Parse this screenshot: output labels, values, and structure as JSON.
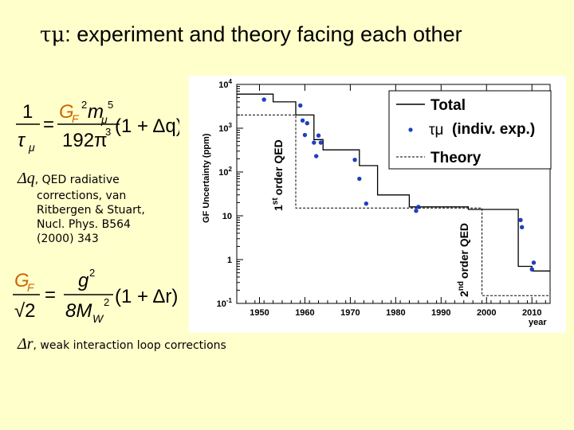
{
  "title": {
    "symbol": "τμ",
    "text": ": experiment and theory facing each other"
  },
  "equations": {
    "eq1": {
      "lhs_num": "1",
      "lhs_den": "τ",
      "lhs_den_sub": "μ",
      "rhs_num": "G",
      "rhs_num_sub": "F",
      "rhs_num_sup": "2",
      "rhs_num_m": "m",
      "rhs_num_m_sub": "μ",
      "rhs_num_m_sup": "5",
      "rhs_den": "192π",
      "rhs_den_sup": "3",
      "factor": "(1 + Δq)"
    },
    "eq2": {
      "lhs_num": "G",
      "lhs_num_sub": "F",
      "lhs_den": "√2",
      "rhs_num": "g",
      "rhs_num_sup": "2",
      "rhs_den": "8M",
      "rhs_den_sub": "W",
      "rhs_den_sup": "2",
      "factor": "(1 + Δr)"
    }
  },
  "notes": {
    "dq_symbol": "Δq",
    "dq_text_1": ", QED radiative",
    "dq_text_2": "corrections, van",
    "dq_text_3": "Ritbergen & Stuart,",
    "dq_text_4": "Nucl. Phys. B564",
    "dq_text_5": "(2000) 343",
    "dr_symbol": "Δr",
    "dr_text": ", weak interaction loop corrections"
  },
  "chart_data": {
    "type": "line",
    "ylabel": "GF Uncertainty (ppm)",
    "xlabel": "year",
    "y_scale": "log",
    "xlim": [
      1945,
      2014
    ],
    "ylim": [
      0.1,
      10000
    ],
    "x_ticks": [
      "1950",
      "1960",
      "1970",
      "1980",
      "1990",
      "2000",
      "2010"
    ],
    "y_ticks": [
      "10-1",
      "1",
      "10",
      "102",
      "103",
      "104"
    ],
    "legend": {
      "placement": "top-right",
      "total": "Total",
      "exp_symbol": "τμ",
      "exp_text": "(indiv. exp.)",
      "theory": "Theory"
    },
    "annotations": {
      "first_order_sup": "st",
      "first_order_pre": "1",
      "first_order_text": "order QED",
      "second_order_sup": "nd",
      "second_order_pre": "2",
      "second_order_text": "order QED"
    },
    "series": [
      {
        "name": "Total",
        "step": [
          [
            1945,
            6000
          ],
          [
            1953,
            6000
          ],
          [
            1953,
            4000
          ],
          [
            1958,
            4000
          ],
          [
            1958,
            2000
          ],
          [
            1962,
            2000
          ],
          [
            1962,
            550
          ],
          [
            1964,
            550
          ],
          [
            1964,
            320
          ],
          [
            1972,
            320
          ],
          [
            1972,
            140
          ],
          [
            1976,
            140
          ],
          [
            1976,
            30
          ],
          [
            1983,
            30
          ],
          [
            1983,
            16
          ],
          [
            1996,
            16
          ],
          [
            1996,
            14
          ],
          [
            2007,
            14
          ],
          [
            2007,
            0.7
          ],
          [
            2010,
            0.7
          ],
          [
            2010,
            0.55
          ],
          [
            2014,
            0.55
          ]
        ]
      },
      {
        "name": "τμ (indiv. exp.)",
        "points": [
          [
            1951,
            4500
          ],
          [
            1959,
            3300
          ],
          [
            1959.5,
            1500
          ],
          [
            1960,
            700
          ],
          [
            1960.5,
            1300
          ],
          [
            1962,
            470
          ],
          [
            1962.5,
            230
          ],
          [
            1963,
            680
          ],
          [
            1963.5,
            470
          ],
          [
            1971,
            190
          ],
          [
            1972,
            70
          ],
          [
            1973.5,
            19
          ],
          [
            1984.5,
            13
          ],
          [
            1985,
            16
          ],
          [
            2007.5,
            8
          ],
          [
            2007.8,
            5.5
          ],
          [
            2010,
            0.6
          ],
          [
            2010.4,
            0.85
          ]
        ]
      },
      {
        "name": "Theory",
        "step": [
          [
            1945,
            2000
          ],
          [
            1958,
            2000
          ],
          [
            1958,
            15
          ],
          [
            1999,
            15
          ],
          [
            1999,
            0.15
          ],
          [
            2014,
            0.15
          ]
        ]
      }
    ]
  }
}
